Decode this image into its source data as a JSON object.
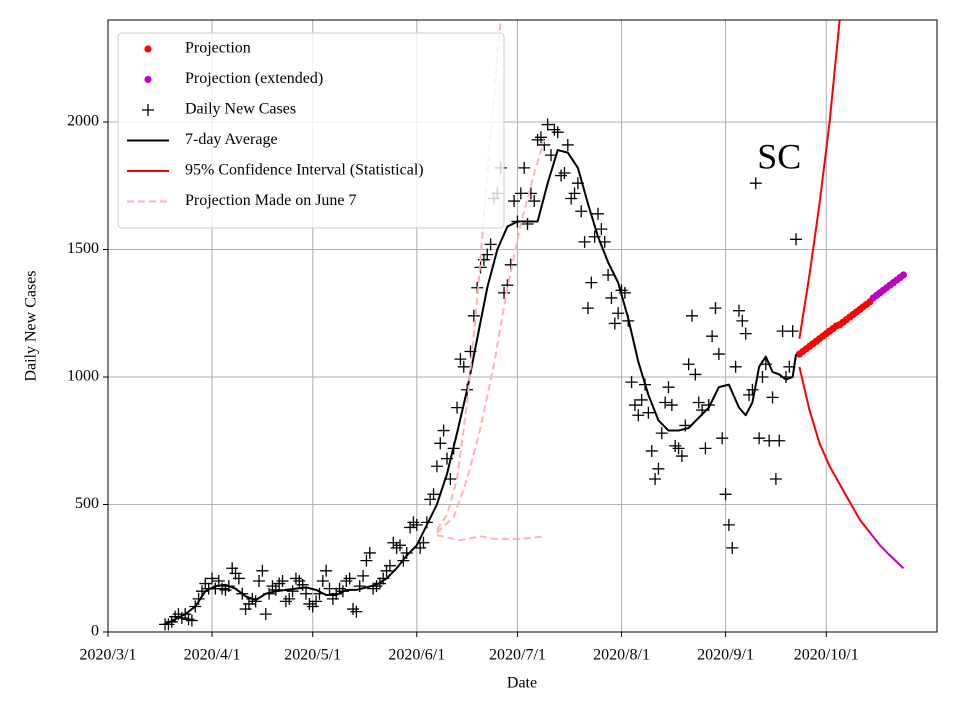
{
  "chart_data": {
    "type": "line",
    "xlabel": "Date",
    "ylabel": "Daily New Cases",
    "annotations": [
      {
        "text": "SC",
        "x": "2020-09-17",
        "y": 1850
      }
    ],
    "xlim": [
      "2020-03-01",
      "2020-11-03"
    ],
    "ylim": [
      0,
      2400
    ],
    "xticks": [
      {
        "value": "2020-03-01",
        "label": "2020/3/1"
      },
      {
        "value": "2020-04-01",
        "label": "2020/4/1"
      },
      {
        "value": "2020-05-01",
        "label": "2020/5/1"
      },
      {
        "value": "2020-06-01",
        "label": "2020/6/1"
      },
      {
        "value": "2020-07-01",
        "label": "2020/7/1"
      },
      {
        "value": "2020-08-01",
        "label": "2020/8/1"
      },
      {
        "value": "2020-09-01",
        "label": "2020/9/1"
      },
      {
        "value": "2020-10-01",
        "label": "2020/10/1"
      }
    ],
    "yticks": [
      0,
      500,
      1000,
      1500,
      2000
    ],
    "grid": true,
    "legend": "upper left",
    "series": [
      {
        "name": "Projection",
        "color": "#ff0000",
        "mode": "markers",
        "marker": "o",
        "x": [
          "2020-09-23",
          "2020-09-24",
          "2020-09-25",
          "2020-09-26",
          "2020-09-27",
          "2020-09-28",
          "2020-09-29",
          "2020-09-30",
          "2020-10-01",
          "2020-10-02",
          "2020-10-03",
          "2020-10-04",
          "2020-10-05",
          "2020-10-06",
          "2020-10-07",
          "2020-10-08",
          "2020-10-09",
          "2020-10-10",
          "2020-10-11",
          "2020-10-12",
          "2020-10-13",
          "2020-10-14"
        ],
        "values": [
          1090,
          1100,
          1110,
          1120,
          1130,
          1140,
          1150,
          1160,
          1170,
          1180,
          1190,
          1200,
          1205,
          1215,
          1225,
          1235,
          1245,
          1255,
          1265,
          1275,
          1285,
          1295
        ]
      },
      {
        "name": "Projection (extended)",
        "color": "#bf00bf",
        "mode": "markers",
        "marker": "o",
        "x": [
          "2020-10-15",
          "2020-10-16",
          "2020-10-17",
          "2020-10-18",
          "2020-10-19",
          "2020-10-20",
          "2020-10-21",
          "2020-10-22",
          "2020-10-23",
          "2020-10-24"
        ],
        "values": [
          1310,
          1320,
          1330,
          1340,
          1350,
          1360,
          1370,
          1380,
          1390,
          1400
        ]
      },
      {
        "name": "Daily New Cases",
        "color": "#000000",
        "mode": "markers",
        "marker": "+",
        "x": [
          "2020-03-18",
          "2020-03-19",
          "2020-03-20",
          "2020-03-21",
          "2020-03-22",
          "2020-03-23",
          "2020-03-24",
          "2020-03-25",
          "2020-03-26",
          "2020-03-27",
          "2020-03-28",
          "2020-03-29",
          "2020-03-30",
          "2020-03-31",
          "2020-04-01",
          "2020-04-02",
          "2020-04-03",
          "2020-04-04",
          "2020-04-05",
          "2020-04-06",
          "2020-04-07",
          "2020-04-08",
          "2020-04-09",
          "2020-04-10",
          "2020-04-11",
          "2020-04-12",
          "2020-04-13",
          "2020-04-14",
          "2020-04-15",
          "2020-04-16",
          "2020-04-17",
          "2020-04-18",
          "2020-04-19",
          "2020-04-20",
          "2020-04-21",
          "2020-04-22",
          "2020-04-23",
          "2020-04-24",
          "2020-04-25",
          "2020-04-26",
          "2020-04-27",
          "2020-04-28",
          "2020-04-29",
          "2020-04-30",
          "2020-05-01",
          "2020-05-02",
          "2020-05-03",
          "2020-05-04",
          "2020-05-05",
          "2020-05-06",
          "2020-05-07",
          "2020-05-08",
          "2020-05-09",
          "2020-05-10",
          "2020-05-11",
          "2020-05-12",
          "2020-05-13",
          "2020-05-14",
          "2020-05-15",
          "2020-05-16",
          "2020-05-17",
          "2020-05-18",
          "2020-05-19",
          "2020-05-20",
          "2020-05-21",
          "2020-05-22",
          "2020-05-23",
          "2020-05-24",
          "2020-05-25",
          "2020-05-26",
          "2020-05-27",
          "2020-05-28",
          "2020-05-29",
          "2020-05-30",
          "2020-05-31",
          "2020-06-01",
          "2020-06-02",
          "2020-06-03",
          "2020-06-04",
          "2020-06-05",
          "2020-06-06",
          "2020-06-07",
          "2020-06-08",
          "2020-06-09",
          "2020-06-10",
          "2020-06-11",
          "2020-06-12",
          "2020-06-13",
          "2020-06-14",
          "2020-06-15",
          "2020-06-16",
          "2020-06-17",
          "2020-06-18",
          "2020-06-19",
          "2020-06-20",
          "2020-06-21",
          "2020-06-22",
          "2020-06-23",
          "2020-06-24",
          "2020-06-25",
          "2020-06-26",
          "2020-06-27",
          "2020-06-28",
          "2020-06-29",
          "2020-06-30",
          "2020-07-01",
          "2020-07-02",
          "2020-07-03",
          "2020-07-04",
          "2020-07-05",
          "2020-07-06",
          "2020-07-07",
          "2020-07-08",
          "2020-07-09",
          "2020-07-10",
          "2020-07-11",
          "2020-07-12",
          "2020-07-13",
          "2020-07-14",
          "2020-07-15",
          "2020-07-16",
          "2020-07-17",
          "2020-07-18",
          "2020-07-19",
          "2020-07-20",
          "2020-07-21",
          "2020-07-22",
          "2020-07-23",
          "2020-07-24",
          "2020-07-25",
          "2020-07-26",
          "2020-07-27",
          "2020-07-28",
          "2020-07-29",
          "2020-07-30",
          "2020-07-31",
          "2020-08-01",
          "2020-08-02",
          "2020-08-03",
          "2020-08-04",
          "2020-08-05",
          "2020-08-06",
          "2020-08-07",
          "2020-08-08",
          "2020-08-09",
          "2020-08-10",
          "2020-08-11",
          "2020-08-12",
          "2020-08-13",
          "2020-08-14",
          "2020-08-15",
          "2020-08-16",
          "2020-08-17",
          "2020-08-18",
          "2020-08-19",
          "2020-08-20",
          "2020-08-21",
          "2020-08-22",
          "2020-08-23",
          "2020-08-24",
          "2020-08-25",
          "2020-08-26",
          "2020-08-27",
          "2020-08-28",
          "2020-08-29",
          "2020-08-30",
          "2020-08-31",
          "2020-09-01",
          "2020-09-02",
          "2020-09-03",
          "2020-09-04",
          "2020-09-05",
          "2020-09-06",
          "2020-09-07",
          "2020-09-08",
          "2020-09-09",
          "2020-09-10",
          "2020-09-11",
          "2020-09-12",
          "2020-09-13",
          "2020-09-14",
          "2020-09-15",
          "2020-09-16",
          "2020-09-17",
          "2020-09-18",
          "2020-09-19",
          "2020-09-20",
          "2020-09-21",
          "2020-09-22"
        ],
        "values": [
          30,
          30,
          40,
          60,
          70,
          55,
          70,
          50,
          45,
          100,
          130,
          160,
          190,
          170,
          210,
          170,
          200,
          170,
          165,
          180,
          250,
          230,
          210,
          150,
          90,
          110,
          130,
          120,
          200,
          240,
          70,
          150,
          180,
          165,
          190,
          200,
          120,
          130,
          160,
          210,
          200,
          185,
          150,
          110,
          100,
          120,
          150,
          200,
          240,
          170,
          130,
          150,
          170,
          160,
          200,
          210,
          90,
          80,
          180,
          220,
          280,
          310,
          170,
          180,
          190,
          210,
          240,
          260,
          350,
          330,
          340,
          280,
          310,
          410,
          430,
          420,
          330,
          350,
          430,
          520,
          540,
          650,
          740,
          790,
          680,
          600,
          720,
          880,
          1070,
          1040,
          950,
          1100,
          1240,
          1350,
          1430,
          1460,
          1480,
          1520,
          1700,
          1720,
          1820,
          1330,
          1360,
          1440,
          1690,
          1610,
          1720,
          1820,
          1600,
          1720,
          1690,
          1930,
          1940,
          1910,
          1990,
          1870,
          1970,
          1960,
          1790,
          1800,
          1910,
          1700,
          1720,
          1760,
          1650,
          1530,
          1270,
          1370,
          1550,
          1640,
          1580,
          1530,
          1400,
          1310,
          1210,
          1250,
          1340,
          1330,
          1220,
          980,
          890,
          850,
          910,
          970,
          860,
          710,
          600,
          640,
          780,
          900,
          960,
          890,
          730,
          720,
          690,
          810,
          1050,
          1240,
          1010,
          900,
          870,
          720,
          890,
          1160,
          1270,
          1090,
          760,
          540,
          420,
          330,
          1040,
          1260,
          1220,
          1170,
          930,
          950,
          1760,
          760,
          1000,
          1050,
          750,
          920,
          600,
          750,
          1180,
          1000,
          1040,
          1180,
          1540
        ]
      },
      {
        "name": "7-day Average",
        "color": "#000000",
        "mode": "line",
        "x": [
          "2020-03-18",
          "2020-03-21",
          "2020-03-24",
          "2020-03-27",
          "2020-03-30",
          "2020-04-02",
          "2020-04-05",
          "2020-04-08",
          "2020-04-11",
          "2020-04-14",
          "2020-04-17",
          "2020-04-20",
          "2020-04-23",
          "2020-04-26",
          "2020-04-29",
          "2020-05-02",
          "2020-05-05",
          "2020-05-08",
          "2020-05-11",
          "2020-05-14",
          "2020-05-17",
          "2020-05-20",
          "2020-05-23",
          "2020-05-26",
          "2020-05-29",
          "2020-06-01",
          "2020-06-04",
          "2020-06-07",
          "2020-06-10",
          "2020-06-13",
          "2020-06-16",
          "2020-06-19",
          "2020-06-22",
          "2020-06-25",
          "2020-06-28",
          "2020-07-01",
          "2020-07-04",
          "2020-07-07",
          "2020-07-10",
          "2020-07-13",
          "2020-07-16",
          "2020-07-19",
          "2020-07-22",
          "2020-07-25",
          "2020-07-28",
          "2020-07-31",
          "2020-08-03",
          "2020-08-06",
          "2020-08-09",
          "2020-08-12",
          "2020-08-15",
          "2020-08-18",
          "2020-08-21",
          "2020-08-24",
          "2020-08-27",
          "2020-08-30",
          "2020-09-02",
          "2020-09-05",
          "2020-09-07",
          "2020-09-09",
          "2020-09-11",
          "2020-09-13",
          "2020-09-15",
          "2020-09-17",
          "2020-09-19",
          "2020-09-21",
          "2020-09-22"
        ],
        "values": [
          30,
          50,
          70,
          100,
          160,
          180,
          185,
          170,
          140,
          125,
          150,
          160,
          165,
          170,
          175,
          165,
          145,
          145,
          165,
          165,
          175,
          185,
          210,
          250,
          300,
          340,
          420,
          500,
          620,
          780,
          950,
          1150,
          1350,
          1500,
          1590,
          1610,
          1610,
          1610,
          1760,
          1890,
          1880,
          1820,
          1680,
          1550,
          1450,
          1370,
          1230,
          1060,
          930,
          830,
          790,
          790,
          800,
          840,
          880,
          960,
          970,
          880,
          850,
          900,
          1040,
          1080,
          1020,
          1010,
          990,
          1000,
          1090
        ]
      },
      {
        "name": "95% Confidence Interval (Statistical)",
        "color": "#ff0000",
        "mode": "line",
        "x": [
          "2020-09-23",
          "2020-09-26",
          "2020-09-29",
          "2020-10-02",
          "2020-10-05"
        ],
        "values": [
          1150,
          1400,
          1680,
          2000,
          2400
        ]
      },
      {
        "color": "#ff0000",
        "mode": "line",
        "x": [
          "2020-09-23",
          "2020-09-26",
          "2020-09-29",
          "2020-10-02",
          "2020-10-05",
          "2020-10-08",
          "2020-10-11",
          "2020-10-14"
        ],
        "values": [
          1040,
          870,
          740,
          650,
          580,
          510,
          440,
          390
        ]
      },
      {
        "color": "#bf00bf",
        "mode": "line",
        "x": [
          "2020-10-14",
          "2020-10-17",
          "2020-10-20",
          "2020-10-24"
        ],
        "values": [
          390,
          340,
          300,
          250
        ]
      },
      {
        "name": "Projection Made on June 7",
        "color": "#ffb3b3",
        "mode": "line",
        "dash": true,
        "x": [
          "2020-06-07",
          "2020-06-10",
          "2020-06-13",
          "2020-06-16",
          "2020-06-19",
          "2020-06-22",
          "2020-06-24",
          "2020-06-26"
        ],
        "values": [
          400,
          460,
          600,
          900,
          1300,
          1800,
          2100,
          2400
        ]
      },
      {
        "color": "#ffb3b3",
        "mode": "line",
        "dash": true,
        "x": [
          "2020-06-07",
          "2020-06-12",
          "2020-06-16",
          "2020-06-20",
          "2020-06-24",
          "2020-06-28",
          "2020-07-02",
          "2020-07-06",
          "2020-07-09"
        ],
        "values": [
          390,
          450,
          600,
          800,
          1050,
          1350,
          1600,
          1800,
          1930
        ]
      },
      {
        "color": "#ffb3b3",
        "mode": "line",
        "dash": true,
        "x": [
          "2020-06-07",
          "2020-06-10",
          "2020-06-14",
          "2020-06-18",
          "2020-06-20",
          "2020-06-24",
          "2020-06-28",
          "2020-07-02",
          "2020-07-09"
        ],
        "values": [
          380,
          370,
          360,
          370,
          375,
          365,
          365,
          365,
          375
        ]
      }
    ]
  }
}
